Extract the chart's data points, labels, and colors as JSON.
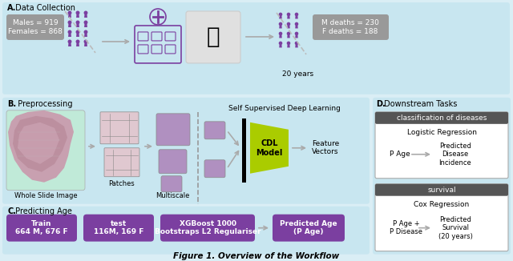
{
  "title": "Figure 1. Overview of the Workflow",
  "bg_color": "#daeef5",
  "section_bg": "#c8e6f0",
  "purple": "#7B3FA0",
  "dark_header": "#555555",
  "gray_box": "#999999",
  "green_cdl": "#aacc00",
  "white": "#ffffff",
  "arrow_color": "#aaaaaa",
  "males_text": "Males = 919\nFemales = 868",
  "deaths_text": "M deaths = 230\nF deaths = 188",
  "years_text": "20 years",
  "label_A": "A.",
  "label_A2": " Data Collection",
  "label_B": "B.",
  "label_B2": "  Preprocessing",
  "label_C": "C.",
  "label_C2": " Predicting Age",
  "label_D": "D.",
  "label_D2": " Downstream Tasks",
  "label_wsi": "Whole Slide Image",
  "label_patches": "Patches",
  "label_multiscale": "Multiscale",
  "label_ssdl": "Self Supervised Deep Learning",
  "label_cdl": "CDL\nModel",
  "label_feature": "Feature\nVectors",
  "train_text": "Train\n664 M, 676 F",
  "test_text": "test\n116M, 169 F",
  "xgb_text": "XGBoost 1000\nBootstraps L2 Regulariser",
  "page_text": "Predicted Age\n(P Age)",
  "class_header": "classification of diseases",
  "logistic_text": "Logistic Regression",
  "p_age_text": "P Age",
  "pred_disease_text": "Predicted\nDisease\nIncidence",
  "survival_header": "survival",
  "cox_text": "Cox Regression",
  "p_age_disease_text": "P Age +\nP Disease",
  "pred_survival_text": "Predicted\nSurvival\n(20 years)"
}
